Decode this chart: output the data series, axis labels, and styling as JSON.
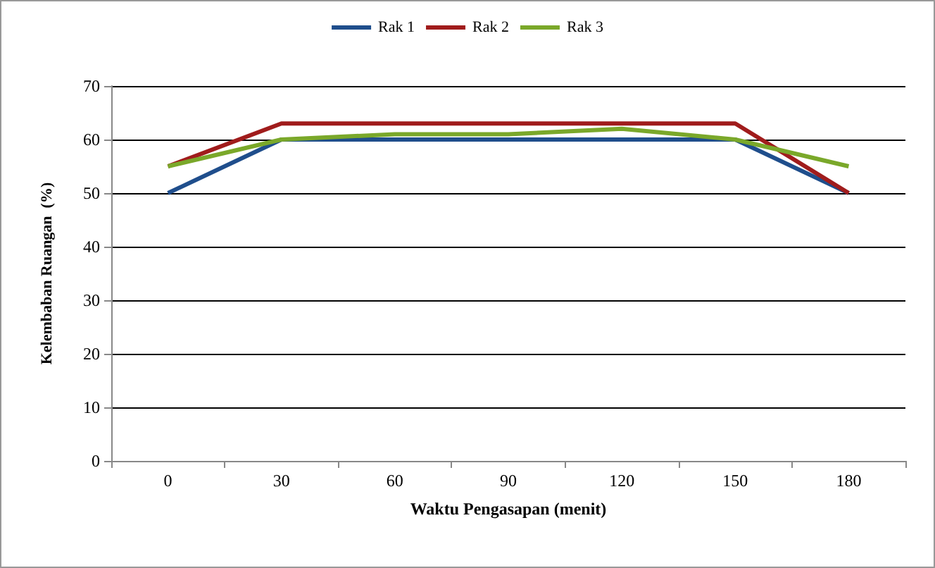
{
  "chart_data": {
    "type": "line",
    "xlabel": "Waktu Pengasapan (menit)",
    "ylabel": "Kelembaban Ruangan  (%)",
    "categories": [
      "0",
      "30",
      "60",
      "90",
      "120",
      "150",
      "180"
    ],
    "series": [
      {
        "name": "Rak 1",
        "color": "#1f4e8c",
        "values": [
          50,
          60,
          60,
          60,
          60,
          60,
          50
        ]
      },
      {
        "name": "Rak 2",
        "color": "#a01c1c",
        "values": [
          55,
          63,
          63,
          63,
          63,
          63,
          50
        ]
      },
      {
        "name": "Rak 3",
        "color": "#7aa82a",
        "values": [
          55,
          60,
          61,
          61,
          62,
          60,
          55
        ]
      }
    ],
    "ylim": [
      0,
      70
    ],
    "yticks": [
      0,
      10,
      20,
      30,
      40,
      50,
      60,
      70
    ],
    "grid": "y",
    "legend": "top",
    "marker": "none",
    "line_style": "solid"
  }
}
